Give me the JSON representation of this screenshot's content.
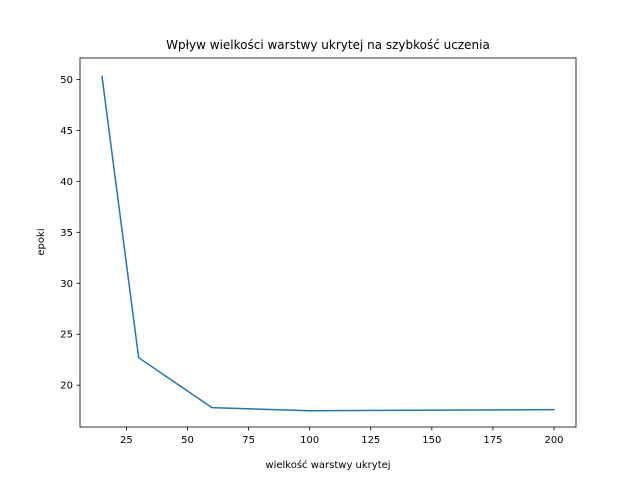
{
  "chart_data": {
    "type": "line",
    "title": "Wpływ wielkości warstwy ukrytej na szybkość uczenia",
    "xlabel": "wielkość warstwy ukrytej",
    "ylabel": "epoki",
    "xlim": [
      6,
      209
    ],
    "ylim": [
      15.9,
      52.1
    ],
    "x_ticks": [
      25,
      50,
      75,
      100,
      125,
      150,
      175,
      200
    ],
    "y_ticks": [
      20,
      25,
      30,
      35,
      40,
      45,
      50
    ],
    "grid": false,
    "line_color": "#1f77b4",
    "series": [
      {
        "x": [
          15,
          30,
          60,
          100,
          200
        ],
        "values": [
          50.3,
          22.7,
          17.8,
          17.5,
          17.6
        ]
      }
    ]
  }
}
